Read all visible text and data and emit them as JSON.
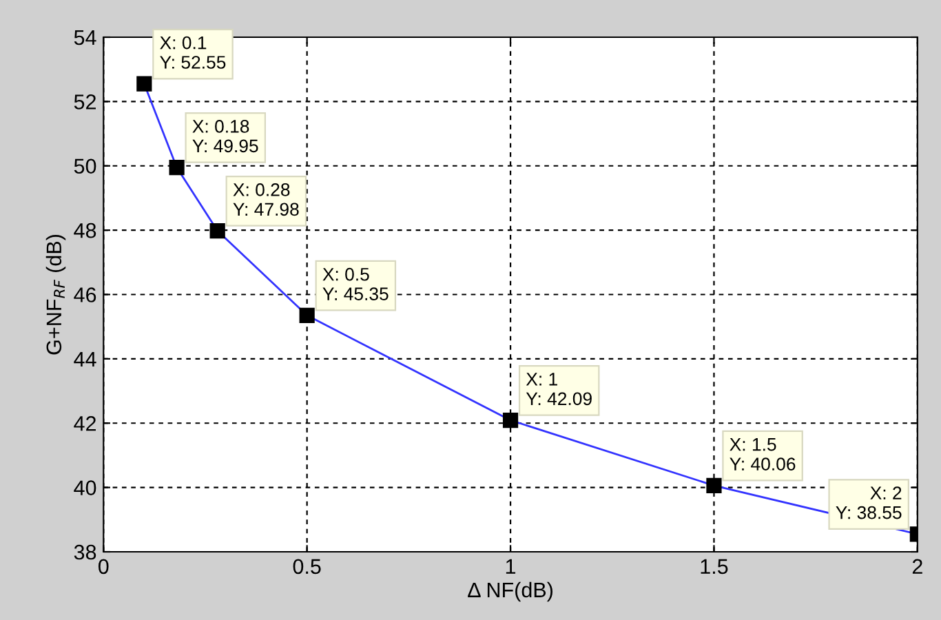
{
  "chart_data": {
    "type": "line",
    "xlabel": "Δ NF(dB)",
    "ylabel": "G+NF$_{RF}$ (dB)",
    "x": [
      0.1,
      0.18,
      0.28,
      0.5,
      1,
      1.5,
      2
    ],
    "series": [
      {
        "color": "#3333ff",
        "values": [
          52.55,
          49.95,
          47.98,
          45.35,
          42.09,
          40.06,
          38.55
        ]
      }
    ],
    "marker": "square",
    "xlim": [
      0,
      2
    ],
    "xticks": [
      0,
      0.5,
      1,
      1.5,
      2
    ],
    "ylim": [
      38,
      54
    ],
    "yticks": [
      38,
      40,
      42,
      44,
      46,
      48,
      50,
      52,
      54
    ],
    "grid": true,
    "annotations": [
      {
        "text": "X: 0.1\nY: 52.55",
        "x": 0.1,
        "y": 52.55
      },
      {
        "text": "X: 0.18\nY: 49.95",
        "x": 0.18,
        "y": 49.95
      },
      {
        "text": "X: 0.28\nY: 47.98",
        "x": 0.28,
        "y": 47.98
      },
      {
        "text": "X: 0.5\nY: 45.35",
        "x": 0.5,
        "y": 45.35
      },
      {
        "text": "X: 1\nY: 42.09",
        "x": 1,
        "y": 42.09
      },
      {
        "text": "X: 1.5\nY: 40.06",
        "x": 1.5,
        "y": 40.06
      },
      {
        "text": "X: 2\nY: 38.55",
        "x": 2,
        "y": 38.55
      }
    ]
  }
}
